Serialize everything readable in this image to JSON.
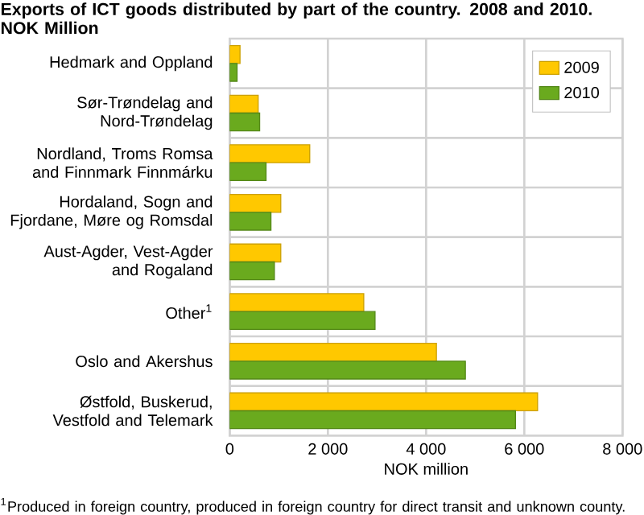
{
  "chart_data": {
    "type": "bar",
    "orientation": "horizontal",
    "title": "Exports of ICT goods distributed by part of the country. 2008 and 2010. NOK Million",
    "xlabel": "NOK million",
    "categories": [
      "Hedmark and Oppland",
      "Sør-Trøndelag and Nord-Trøndelag",
      "Nordland, Troms Romsa and Finnmark Finnmárku",
      "Hordaland, Sogn and Fjordane, Møre og Romsdal",
      "Aust-Agder, Vest-Agder and Rogaland",
      "Other$^{1}$",
      "Oslo and Akershus",
      "Østfold, Buskerud, Vestfold and Telemark"
    ],
    "series": [
      {
        "name": "2009",
        "color": "#ffc800",
        "values": [
          210,
          580,
          1630,
          1040,
          1040,
          2730,
          4210,
          6270
        ]
      },
      {
        "name": "2010",
        "color": "#6aaa1e",
        "values": [
          150,
          610,
          740,
          840,
          910,
          2960,
          4800,
          5820
        ]
      }
    ],
    "xlim": [
      0,
      8000
    ],
    "xticks": [
      0,
      {
        "value": 2000,
        "label": "2 000"
      },
      {
        "value": 4000,
        "label": "4 000"
      },
      {
        "value": 6000,
        "label": "6 000"
      },
      {
        "value": 8000,
        "label": "8 000"
      }
    ],
    "grid": true,
    "legend": "top right",
    "annotations": [
      "$^{1}$Produced in foreign country, produced in foreign country for direct transit and unknown county."
    ]
  }
}
